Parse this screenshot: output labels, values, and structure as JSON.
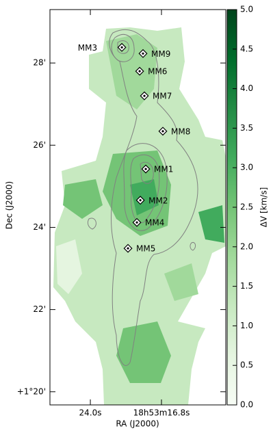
{
  "chart_data": {
    "type": "scatter",
    "xlabel": "RA (J2000)",
    "ylabel": "Dec (J2000)",
    "xlim": [
      28.09,
      10.29
    ],
    "ylim": [
      19.68,
      29.3
    ],
    "xticks": [
      {
        "value": 24.0,
        "label": "24.0s"
      },
      {
        "value": 16.8,
        "label": "18h53m16.8s"
      }
    ],
    "yticks": [
      {
        "value": 20,
        "label": "+1°20'"
      },
      {
        "value": 22,
        "label": "22'"
      },
      {
        "value": 24,
        "label": "24'"
      },
      {
        "value": 26,
        "label": "26'"
      },
      {
        "value": 28,
        "label": "28'"
      }
    ],
    "labels": [
      "MM3",
      "MM9",
      "MM6",
      "MM7",
      "MM8",
      "MM1",
      "MM2",
      "MM4",
      "MM5"
    ],
    "x": [
      20.81,
      18.67,
      19.01,
      18.53,
      16.66,
      18.39,
      18.94,
      19.29,
      20.19
    ],
    "y": [
      28.38,
      28.23,
      27.8,
      27.2,
      26.34,
      25.42,
      24.66,
      24.12,
      23.49
    ],
    "colorbar": {
      "label": "ΔV [km/s]",
      "lim": [
        0,
        5
      ],
      "ticks": [
        {
          "value": 0,
          "label": "0.0"
        },
        0.5,
        {
          "value": 1,
          "label": "1.0"
        },
        1.5,
        {
          "value": 2,
          "label": "2.0"
        },
        2.5,
        {
          "value": 3,
          "label": "3.0"
        },
        3.5,
        {
          "value": 4,
          "label": "4.0"
        },
        4.5,
        {
          "value": 5,
          "label": "5.0"
        }
      ],
      "colormap": [
        "#f7fcf5",
        "#e5f5e0",
        "#c7e9c0",
        "#a1d99b",
        "#74c476",
        "#41ab5d",
        "#238b45",
        "#006d2c",
        "#00441b"
      ]
    }
  }
}
